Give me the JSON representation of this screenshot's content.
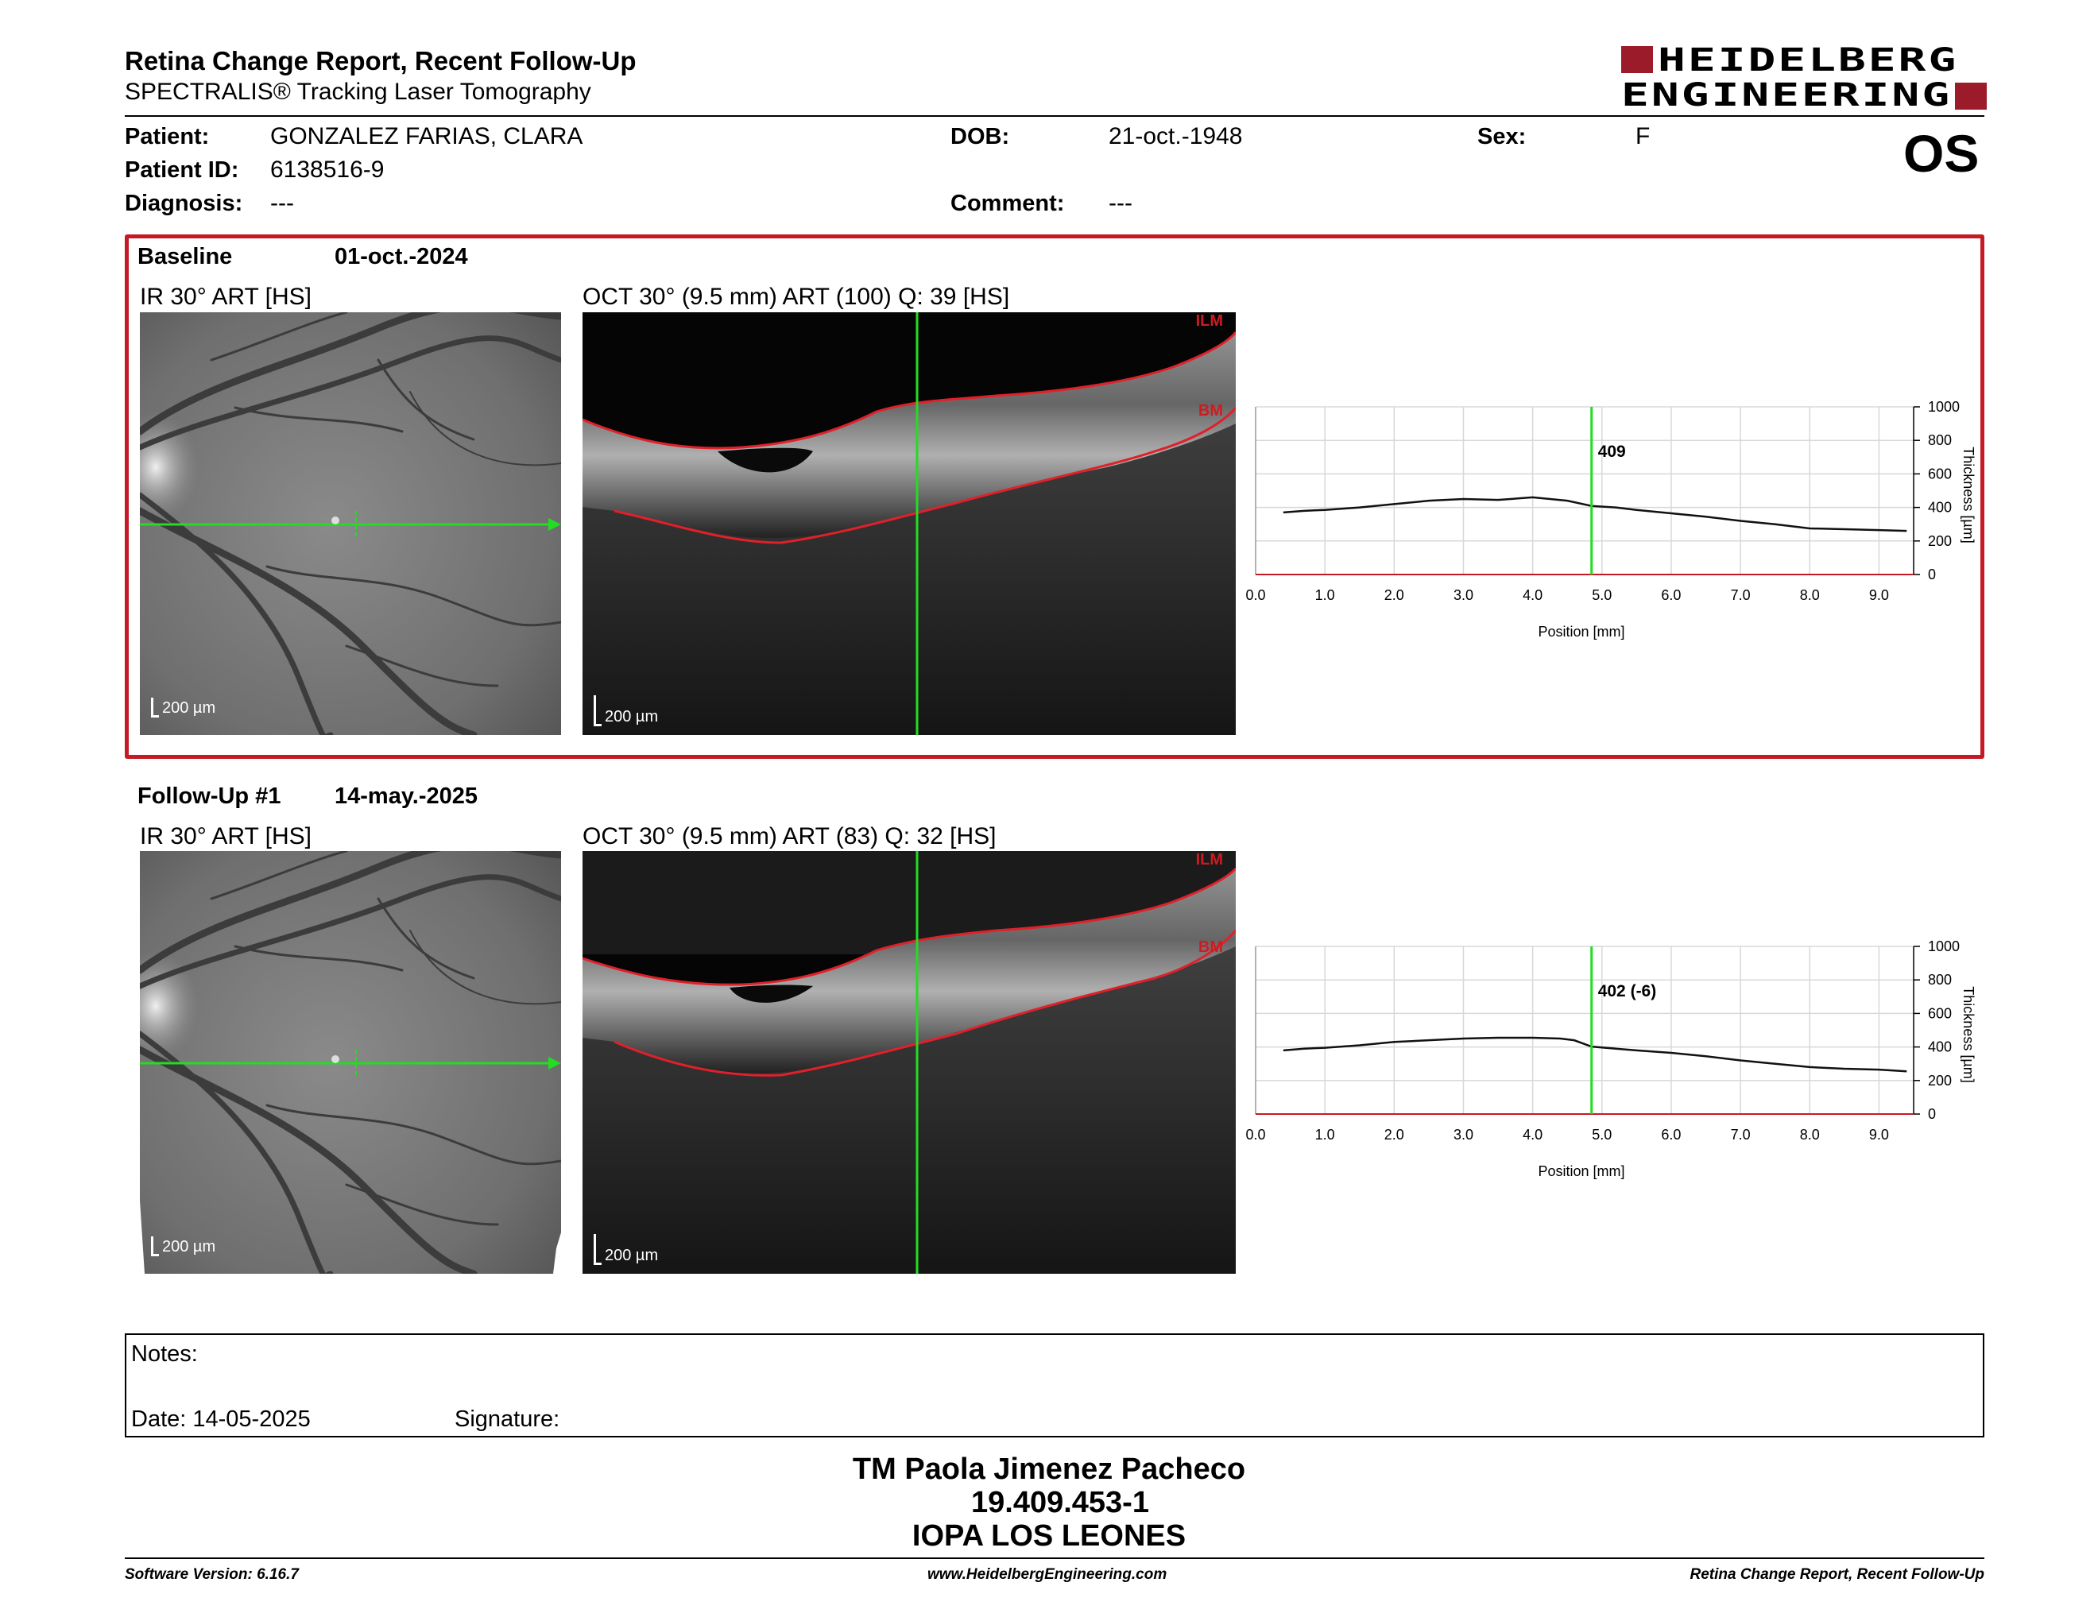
{
  "header": {
    "title": "Retina Change Report, Recent Follow-Up",
    "subtitle": "SPECTRALIS® Tracking Laser Tomography",
    "logo_line1": "HEIDELBERG",
    "logo_line2": "ENGINEERING",
    "eye": "OS"
  },
  "patient": {
    "patient_label": "Patient:",
    "patient_value": "GONZALEZ FARIAS, CLARA",
    "id_label": "Patient ID:",
    "id_value": "6138516-9",
    "diagnosis_label": "Diagnosis:",
    "diagnosis_value": "---",
    "dob_label": "DOB:",
    "dob_value": "21-oct.-1948",
    "comment_label": "Comment:",
    "comment_value": "---",
    "sex_label": "Sex:",
    "sex_value": "F"
  },
  "exams": [
    {
      "label": "Baseline",
      "date": "01-oct.-2024",
      "ir_label": "IR 30° ART [HS]",
      "oct_label": "OCT 30° (9.5 mm) ART (100) Q: 39 [HS]",
      "scale": "200 µm",
      "ilm": "ILM",
      "bm": "BM",
      "marker_label": "409"
    },
    {
      "label": "Follow-Up #1",
      "date": "14-may.-2025",
      "ir_label": "IR 30° ART [HS]",
      "oct_label": "OCT 30° (9.5 mm) ART (83) Q: 32 [HS]",
      "scale": "200 µm",
      "ilm": "ILM",
      "bm": "BM",
      "marker_label": "402 (-6)"
    }
  ],
  "chart_data": [
    {
      "type": "line",
      "title": "",
      "xlabel": "Position [mm]",
      "ylabel": "Thickness [µm]",
      "xlim": [
        0,
        9.5
      ],
      "ylim": [
        0,
        1000
      ],
      "xticks": [
        "0.0",
        "1.0",
        "2.0",
        "3.0",
        "4.0",
        "5.0",
        "6.0",
        "7.0",
        "8.0",
        "9.0"
      ],
      "yticks": [
        "0",
        "200",
        "400",
        "600",
        "800",
        "1000"
      ],
      "grid": true,
      "marker_x": 4.85,
      "series": [
        {
          "x": [
            0.4,
            0.7,
            1.0,
            1.5,
            2.0,
            2.5,
            3.0,
            3.5,
            4.0,
            4.5,
            4.85,
            5.2,
            5.5,
            6.0,
            6.5,
            7.0,
            7.5,
            8.0,
            8.5,
            9.0,
            9.4
          ],
          "values": [
            370,
            380,
            385,
            400,
            420,
            440,
            450,
            445,
            460,
            440,
            409,
            400,
            385,
            365,
            345,
            320,
            300,
            275,
            270,
            265,
            260
          ]
        }
      ]
    },
    {
      "type": "line",
      "title": "",
      "xlabel": "Position [mm]",
      "ylabel": "Thickness [µm]",
      "xlim": [
        0,
        9.5
      ],
      "ylim": [
        0,
        1000
      ],
      "xticks": [
        "0.0",
        "1.0",
        "2.0",
        "3.0",
        "4.0",
        "5.0",
        "6.0",
        "7.0",
        "8.0",
        "9.0"
      ],
      "yticks": [
        "0",
        "200",
        "400",
        "600",
        "800",
        "1000"
      ],
      "grid": true,
      "marker_x": 4.85,
      "series": [
        {
          "x": [
            0.4,
            0.7,
            1.0,
            1.5,
            2.0,
            2.5,
            3.0,
            3.5,
            4.0,
            4.4,
            4.6,
            4.85,
            5.2,
            5.5,
            6.0,
            6.5,
            7.0,
            7.5,
            8.0,
            8.5,
            9.0,
            9.4
          ],
          "values": [
            380,
            390,
            395,
            410,
            430,
            440,
            450,
            455,
            455,
            450,
            440,
            402,
            390,
            380,
            365,
            345,
            320,
            300,
            280,
            270,
            265,
            255
          ]
        }
      ]
    }
  ],
  "notes": {
    "label": "Notes:",
    "date": "Date: 14-05-2025",
    "signature": "Signature:"
  },
  "signer": {
    "name": "TM Paola Jimenez Pacheco",
    "id": "19.409.453-1",
    "org": "IOPA LOS LEONES"
  },
  "footer": {
    "left": "Software Version: 6.16.7",
    "center": "www.HeidelbergEngineering.com",
    "right": "Retina Change Report, Recent Follow-Up"
  }
}
